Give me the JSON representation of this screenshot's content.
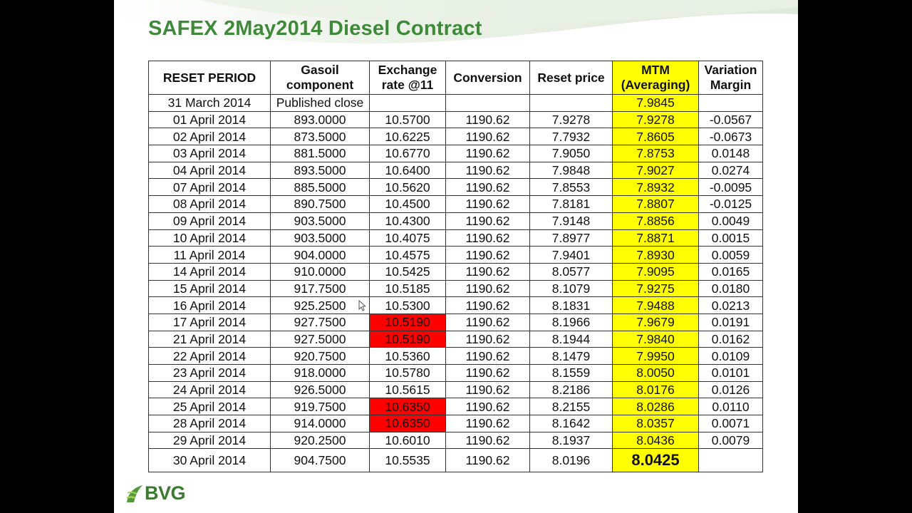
{
  "title": "SAFEX 2May2014 Diesel Contract",
  "logo_text": "BVG",
  "colors": {
    "title": "#3f8a3a",
    "mtm_highlight": "#ffff00",
    "exchange_highlight": "#ff0000"
  },
  "table": {
    "headers": [
      "RESET PERIOD",
      "Gasoil component",
      "Exchange rate @11",
      "Conversion",
      "Reset price",
      "MTM (Averaging)",
      "Variation Margin"
    ],
    "rows": [
      {
        "period": "31 March 2014",
        "gasoil": "Published close",
        "exchange": "",
        "conversion": "",
        "reset": "",
        "mtm": "7.9845",
        "margin": ""
      },
      {
        "period": "01 April 2014",
        "gasoil": "893.0000",
        "exchange": "10.5700",
        "conversion": "1190.62",
        "reset": "7.9278",
        "mtm": "7.9278",
        "margin": "-0.0567"
      },
      {
        "period": "02 April 2014",
        "gasoil": "873.5000",
        "exchange": "10.6225",
        "conversion": "1190.62",
        "reset": "7.7932",
        "mtm": "7.8605",
        "margin": "-0.0673"
      },
      {
        "period": "03 April 2014",
        "gasoil": "881.5000",
        "exchange": "10.6770",
        "conversion": "1190.62",
        "reset": "7.9050",
        "mtm": "7.8753",
        "margin": "0.0148"
      },
      {
        "period": "04 April 2014",
        "gasoil": "893.5000",
        "exchange": "10.6400",
        "conversion": "1190.62",
        "reset": "7.9848",
        "mtm": "7.9027",
        "margin": "0.0274"
      },
      {
        "period": "07 April 2014",
        "gasoil": "885.5000",
        "exchange": "10.5620",
        "conversion": "1190.62",
        "reset": "7.8553",
        "mtm": "7.8932",
        "margin": "-0.0095"
      },
      {
        "period": "08 April 2014",
        "gasoil": "890.7500",
        "exchange": "10.4500",
        "conversion": "1190.62",
        "reset": "7.8181",
        "mtm": "7.8807",
        "margin": "-0.0125"
      },
      {
        "period": "09 April 2014",
        "gasoil": "903.5000",
        "exchange": "10.4300",
        "conversion": "1190.62",
        "reset": "7.9148",
        "mtm": "7.8856",
        "margin": "0.0049"
      },
      {
        "period": "10 April 2014",
        "gasoil": "903.5000",
        "exchange": "10.4075",
        "conversion": "1190.62",
        "reset": "7.8977",
        "mtm": "7.8871",
        "margin": "0.0015"
      },
      {
        "period": "11 April 2014",
        "gasoil": "904.0000",
        "exchange": "10.4575",
        "conversion": "1190.62",
        "reset": "7.9401",
        "mtm": "7.8930",
        "margin": "0.0059"
      },
      {
        "period": "14 April 2014",
        "gasoil": "910.0000",
        "exchange": "10.5425",
        "conversion": "1190.62",
        "reset": "8.0577",
        "mtm": "7.9095",
        "margin": "0.0165"
      },
      {
        "period": "15 April 2014",
        "gasoil": "917.7500",
        "exchange": "10.5185",
        "conversion": "1190.62",
        "reset": "8.1079",
        "mtm": "7.9275",
        "margin": "0.0180"
      },
      {
        "period": "16 April 2014",
        "gasoil": "925.2500",
        "exchange": "10.5300",
        "conversion": "1190.62",
        "reset": "8.1831",
        "mtm": "7.9488",
        "margin": "0.0213"
      },
      {
        "period": "17 April 2014",
        "gasoil": "927.7500",
        "exchange": "10.5190",
        "conversion": "1190.62",
        "reset": "8.1966",
        "mtm": "7.9679",
        "margin": "0.0191",
        "exchange_highlight": true
      },
      {
        "period": "21 April 2014",
        "gasoil": "927.5000",
        "exchange": "10.5190",
        "conversion": "1190.62",
        "reset": "8.1944",
        "mtm": "7.9840",
        "margin": "0.0162",
        "exchange_highlight": true
      },
      {
        "period": "22 April 2014",
        "gasoil": "920.7500",
        "exchange": "10.5360",
        "conversion": "1190.62",
        "reset": "8.1479",
        "mtm": "7.9950",
        "margin": "0.0109"
      },
      {
        "period": "23 April 2014",
        "gasoil": "918.0000",
        "exchange": "10.5780",
        "conversion": "1190.62",
        "reset": "8.1559",
        "mtm": "8.0050",
        "margin": "0.0101"
      },
      {
        "period": "24 April 2014",
        "gasoil": "926.5000",
        "exchange": "10.5615",
        "conversion": "1190.62",
        "reset": "8.2186",
        "mtm": "8.0176",
        "margin": "0.0126"
      },
      {
        "period": "25 April 2014",
        "gasoil": "919.7500",
        "exchange": "10.6350",
        "conversion": "1190.62",
        "reset": "8.2155",
        "mtm": "8.0286",
        "margin": "0.0110",
        "exchange_highlight": true
      },
      {
        "period": "28 April 2014",
        "gasoil": "914.0000",
        "exchange": "10.6350",
        "conversion": "1190.62",
        "reset": "8.1642",
        "mtm": "8.0357",
        "margin": "0.0071",
        "exchange_highlight": true
      },
      {
        "period": "29 April 2014",
        "gasoil": "920.2500",
        "exchange": "10.6010",
        "conversion": "1190.62",
        "reset": "8.1937",
        "mtm": "8.0436",
        "margin": "0.0079"
      },
      {
        "period": "30 April 2014",
        "gasoil": "904.7500",
        "exchange": "10.5535",
        "conversion": "1190.62",
        "reset": "8.0196",
        "mtm": "8.0425",
        "margin": "",
        "final": true
      }
    ]
  }
}
